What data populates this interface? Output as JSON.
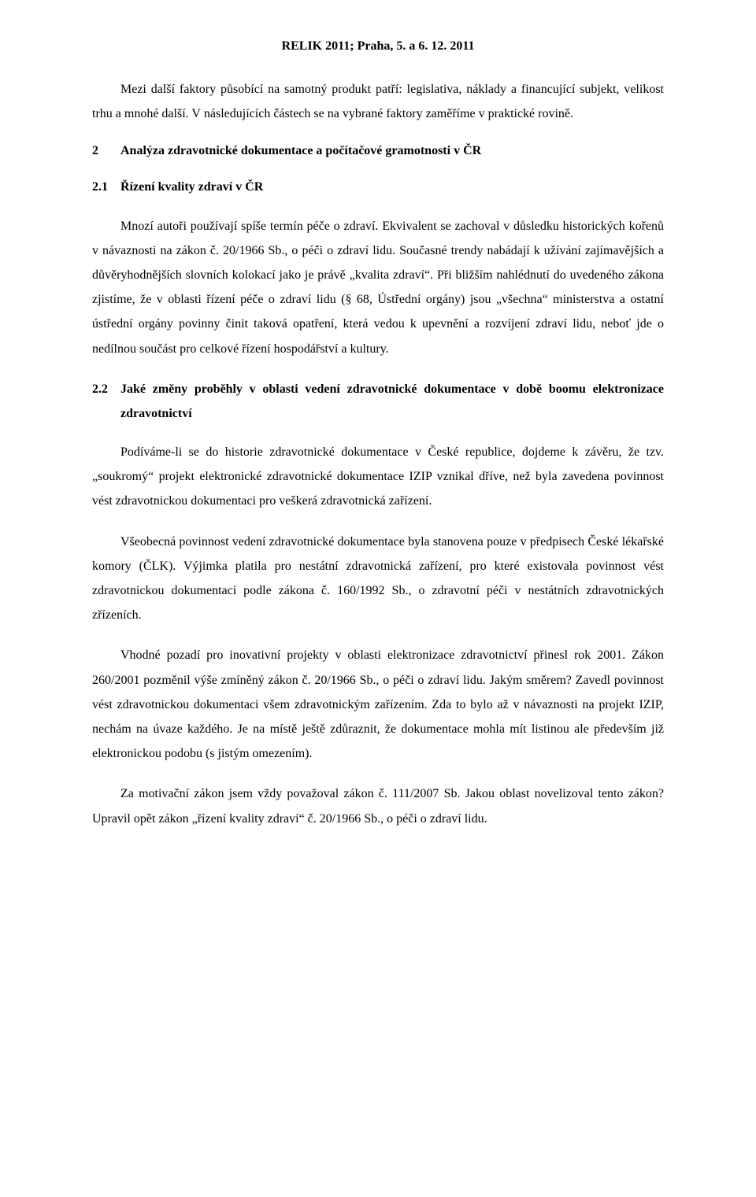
{
  "header": "RELIK 2011; Praha, 5. a 6. 12. 2011",
  "p1": "Mezi další faktory působící na samotný produkt patří: legislativa, náklady a financující subjekt, velikost trhu a mnohé další. V následujících částech se na vybrané faktory zaměříme v praktické rovině.",
  "section2": {
    "number": "2",
    "title": "Analýza zdravotnické dokumentace a počítačové gramotnosti v ČR"
  },
  "section2_1": {
    "number": "2.1",
    "title": "Řízení kvality zdraví v ČR"
  },
  "p2": "Mnozí autoři používají spíše termín péče o zdraví. Ekvivalent se zachoval v důsledku historických kořenů v návaznosti na zákon č. 20/1966 Sb., o péči o zdraví lidu. Současné trendy nabádají k užívání zajímavějších a důvěryhodnějších slovních kolokací jako je právě „kvalita zdraví“. Při bližším nahlédnutí do uvedeného zákona zjistíme, že v oblasti řízení péče o zdraví lidu (§ 68, Ústřední orgány) jsou „všechna“ ministerstva a ostatní ústřední orgány povinny činit taková opatření, která vedou k upevnění a rozvíjení zdraví lidu, neboť jde o nedílnou součást pro celkové řízení hospodářství a kultury.",
  "section2_2": {
    "number": "2.2",
    "title": "Jaké změny proběhly v oblasti vedení zdravotnické dokumentace v době boomu elektronizace zdravotnictví"
  },
  "p3": "Podíváme-li se do historie zdravotnické dokumentace v České republice, dojdeme k závěru, že tzv. „soukromý“ projekt elektronické zdravotnické dokumentace IZIP vznikal dříve, než byla zavedena povinnost vést zdravotnickou dokumentaci pro veškerá zdravotnická zařízení.",
  "p4": "Všeobecná povinnost vedení zdravotnické dokumentace byla stanovena pouze v předpisech České lékařské komory (ČLK). Výjimka platila pro nestátní zdravotnická zařízení, pro které existovala povinnost vést zdravotnickou dokumentaci podle zákona č. 160/1992 Sb., o zdravotní péči v nestátních zdravotnických zřízeních.",
  "p5": "Vhodné pozadí pro inovativní projekty v oblasti elektronizace zdravotnictví přinesl rok 2001. Zákon 260/2001 pozměnil výše zmíněný zákon č. 20/1966 Sb., o péči o zdraví lidu. Jakým směrem? Zavedl povinnost vést zdravotnickou dokumentaci všem zdravotnickým zařízením. Zda to bylo až v návaznosti na projekt IZIP, nechám na úvaze každého. Je na místě ještě zdůraznit, že dokumentace mohla mít listinou ale především již elektronickou podobu (s jistým omezením).",
  "p6": "Za motivační zákon jsem vždy považoval zákon č. 111/2007 Sb. Jakou oblast novelizoval tento zákon? Upravil opět zákon „řízení kvality zdraví“ č. 20/1966 Sb., o péči o zdraví lidu."
}
